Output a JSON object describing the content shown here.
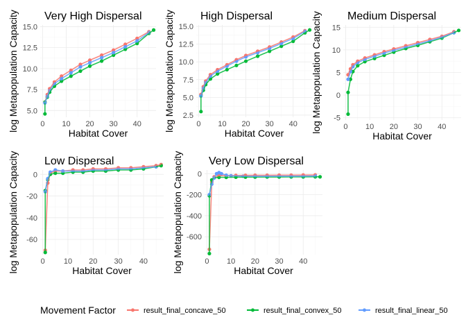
{
  "chart_data": {
    "type": "scatter",
    "xlabel": "Habitat Cover",
    "ylabel": "log Metapopulation Capacity",
    "legend": {
      "title": "Movement Factor",
      "position": "bottom",
      "entries": [
        {
          "name": "result_final_concave_50",
          "color": "#F8766D"
        },
        {
          "name": "result_final_convex_50",
          "color": "#00BA38"
        },
        {
          "name": "result_final_linear_50",
          "color": "#619CFF"
        }
      ]
    },
    "grid": true,
    "panels": [
      {
        "title": "Very High Dispersal",
        "xlim": [
          -1,
          48
        ],
        "ylim": [
          4.2,
          15.2
        ],
        "xticks": [
          0,
          10,
          20,
          30,
          40
        ],
        "yticks": [
          5.0,
          7.5,
          10.0,
          12.5,
          15.0
        ],
        "ytick_labels": [
          "5.0",
          "7.5",
          "10.0",
          "12.5",
          "15.0"
        ],
        "series": {
          "concave": {
            "x": [
              1,
              2,
              3,
              5,
              8,
              12,
              16,
              20,
              25,
              30,
              35,
              40,
              45
            ],
            "y": [
              6.0,
              6.9,
              7.6,
              8.4,
              9.1,
              9.8,
              10.5,
              11.0,
              11.6,
              12.2,
              12.9,
              13.6,
              14.4
            ]
          },
          "convex": {
            "x": [
              1,
              1,
              2,
              3,
              5,
              8,
              12,
              16,
              20,
              25,
              30,
              35,
              40,
              45,
              47
            ],
            "y": [
              4.6,
              6.0,
              6.6,
              7.2,
              7.9,
              8.5,
              9.1,
              9.7,
              10.3,
              10.9,
              11.6,
              12.3,
              13.0,
              14.2,
              14.6
            ]
          },
          "linear": {
            "x": [
              1,
              2,
              3,
              5,
              8,
              12,
              16,
              20,
              25,
              30,
              35,
              40,
              45
            ],
            "y": [
              5.9,
              6.7,
              7.4,
              8.2,
              8.8,
              9.5,
              10.2,
              10.7,
              11.3,
              11.9,
              12.6,
              13.3,
              14.3
            ]
          }
        }
      },
      {
        "title": "High Dispersal",
        "xlim": [
          -1,
          48
        ],
        "ylim": [
          2.2,
          15.2
        ],
        "xticks": [
          0,
          10,
          20,
          30,
          40
        ],
        "yticks": [
          2.5,
          5.0,
          7.5,
          10.0,
          12.5,
          15.0
        ],
        "ytick_labels": [
          "2.5",
          "5.0",
          "7.5",
          "10.0",
          "12.5",
          "15.0"
        ],
        "series": {
          "concave": {
            "x": [
              1,
              2,
              3,
              5,
              8,
              12,
              16,
              20,
              25,
              30,
              35,
              40,
              45
            ],
            "y": [
              5.4,
              6.5,
              7.3,
              8.2,
              8.9,
              9.6,
              10.3,
              10.9,
              11.5,
              12.1,
              12.8,
              13.5,
              14.4
            ]
          },
          "convex": {
            "x": [
              1,
              1,
              2,
              3,
              5,
              8,
              12,
              16,
              20,
              25,
              30,
              35,
              40,
              45,
              47
            ],
            "y": [
              3.0,
              5.2,
              6.0,
              6.8,
              7.6,
              8.3,
              8.9,
              9.5,
              10.1,
              10.8,
              11.5,
              12.2,
              12.9,
              14.1,
              14.5
            ]
          },
          "linear": {
            "x": [
              1,
              2,
              3,
              5,
              8,
              12,
              16,
              20,
              25,
              30,
              35,
              40,
              45
            ],
            "y": [
              5.2,
              6.3,
              7.1,
              8.0,
              8.7,
              9.4,
              10.1,
              10.7,
              11.3,
              11.9,
              12.6,
              13.3,
              14.3
            ]
          }
        }
      },
      {
        "title": "Medium Dispersal",
        "xlim": [
          -1,
          48
        ],
        "ylim": [
          -5.5,
          15.5
        ],
        "xticks": [
          0,
          10,
          20,
          30,
          40
        ],
        "yticks": [
          -5,
          0,
          5,
          10,
          15
        ],
        "ytick_labels": [
          "-5",
          "0",
          "5",
          "10",
          "15"
        ],
        "series": {
          "concave": {
            "x": [
              1,
              2,
              3,
              5,
              8,
              12,
              16,
              20,
              25,
              30,
              35,
              40,
              45
            ],
            "y": [
              4.5,
              5.8,
              6.7,
              7.5,
              8.2,
              8.9,
              9.6,
              10.2,
              10.9,
              11.6,
              12.3,
              13.0,
              14.0
            ]
          },
          "convex": {
            "x": [
              1,
              1,
              2,
              3,
              5,
              8,
              12,
              16,
              20,
              25,
              30,
              35,
              40,
              45,
              47
            ],
            "y": [
              -4.2,
              0.6,
              3.5,
              5.2,
              6.5,
              7.4,
              8.1,
              8.8,
              9.5,
              10.3,
              11.0,
              11.8,
              12.6,
              13.8,
              14.3
            ]
          },
          "linear": {
            "x": [
              1,
              2,
              3,
              5,
              8,
              12,
              16,
              20,
              25,
              30,
              35,
              40,
              45
            ],
            "y": [
              3.5,
              5.2,
              6.3,
              7.2,
              7.9,
              8.6,
              9.3,
              9.9,
              10.6,
              11.3,
              12.0,
              12.8,
              13.8
            ]
          }
        }
      },
      {
        "title": "Low Dispersal",
        "xlim": [
          -1,
          48
        ],
        "ylim": [
          -74,
          4
        ],
        "xticks": [
          0,
          10,
          20,
          30,
          40
        ],
        "yticks": [
          -60,
          -40,
          -20,
          0
        ],
        "ytick_labels": [
          "-60",
          "-40",
          "-20",
          "0"
        ],
        "series": {
          "concave": {
            "x": [
              1,
              2,
              3,
              5,
              8,
              12,
              16,
              20,
              25,
              30,
              35,
              40,
              45,
              47
            ],
            "y": [
              -70,
              -8,
              1,
              3,
              3,
              4,
              4,
              5,
              5,
              6,
              6,
              7,
              8,
              9
            ]
          },
          "convex": {
            "x": [
              1,
              1,
              2,
              3,
              5,
              8,
              12,
              16,
              20,
              25,
              30,
              35,
              40,
              45,
              47
            ],
            "y": [
              -72,
              -15,
              -5,
              0,
              1,
              1,
              2,
              2,
              3,
              3,
              4,
              4,
              5,
              7,
              8
            ]
          },
          "linear": {
            "x": [
              1,
              2,
              3,
              5,
              8,
              12,
              16,
              20,
              25,
              30,
              35,
              40,
              45
            ],
            "y": [
              -16,
              -4,
              2,
              4,
              3,
              3,
              3,
              4,
              4,
              5,
              5,
              6,
              7
            ]
          }
        }
      },
      {
        "title": "Very Low Dispersal",
        "xlim": [
          -1,
          48
        ],
        "ylim": [
          -770,
          35
        ],
        "xticks": [
          0,
          10,
          20,
          30,
          40
        ],
        "yticks": [
          -600,
          -400,
          -200,
          0
        ],
        "ytick_labels": [
          "-600",
          "-400",
          "-200",
          "0"
        ],
        "series": {
          "concave": {
            "x": [
              1,
              2,
              3,
              5,
              8,
              12,
              16,
              20,
              25,
              30,
              35,
              40,
              45
            ],
            "y": [
              -720,
              -80,
              -30,
              -20,
              -18,
              -17,
              -16,
              -15,
              -15,
              -14,
              -14,
              -13,
              -12
            ]
          },
          "convex": {
            "x": [
              1,
              1,
              2,
              3,
              5,
              8,
              12,
              16,
              20,
              25,
              30,
              35,
              40,
              45,
              47
            ],
            "y": [
              -760,
              -210,
              -60,
              -40,
              -35,
              -35,
              -34,
              -33,
              -33,
              -32,
              -32,
              -31,
              -31,
              -30,
              -30
            ]
          },
          "linear": {
            "x": [
              1,
              2,
              3,
              4,
              5,
              6,
              8,
              10,
              15,
              20,
              25,
              30,
              35,
              40,
              45
            ],
            "y": [
              -200,
              -100,
              -40,
              0,
              10,
              0,
              -15,
              -20,
              -24,
              -25,
              -25,
              -24,
              -24,
              -23,
              -22
            ]
          }
        }
      }
    ]
  }
}
